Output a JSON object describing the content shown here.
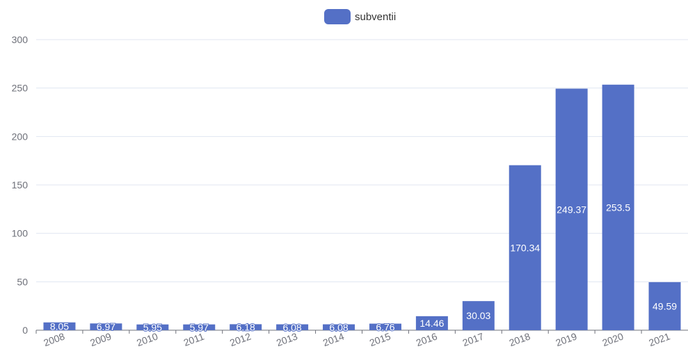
{
  "legend": {
    "label": "subventii"
  },
  "colors": {
    "bar": "#5470c6",
    "grid": "#e0e6f1",
    "axis_text": "#6e7079",
    "axis_line": "#6e7079",
    "data_label": "#ffffff"
  },
  "chart_data": {
    "type": "bar",
    "categories": [
      "2008",
      "2009",
      "2010",
      "2011",
      "2012",
      "2013",
      "2014",
      "2015",
      "2016",
      "2017",
      "2018",
      "2019",
      "2020",
      "2021"
    ],
    "series": [
      {
        "name": "subventii",
        "values": [
          8.05,
          6.97,
          5.95,
          5.97,
          6.18,
          6.08,
          6.08,
          6.76,
          14.46,
          30.03,
          170.34,
          249.37,
          253.5,
          49.59
        ]
      }
    ],
    "data_labels": [
      "8.05",
      "6.97",
      "5.95",
      "5.97",
      "6.18",
      "6.08",
      "6.08",
      "6.76",
      "14.46",
      "30.03",
      "170.34",
      "249.37",
      "253.5",
      "49.59"
    ],
    "ylim": [
      0,
      300
    ],
    "y_ticks": [
      0,
      50,
      100,
      150,
      200,
      250,
      300
    ],
    "grid": true,
    "legend_position": "top-center",
    "title": "",
    "xlabel": "",
    "ylabel": ""
  }
}
